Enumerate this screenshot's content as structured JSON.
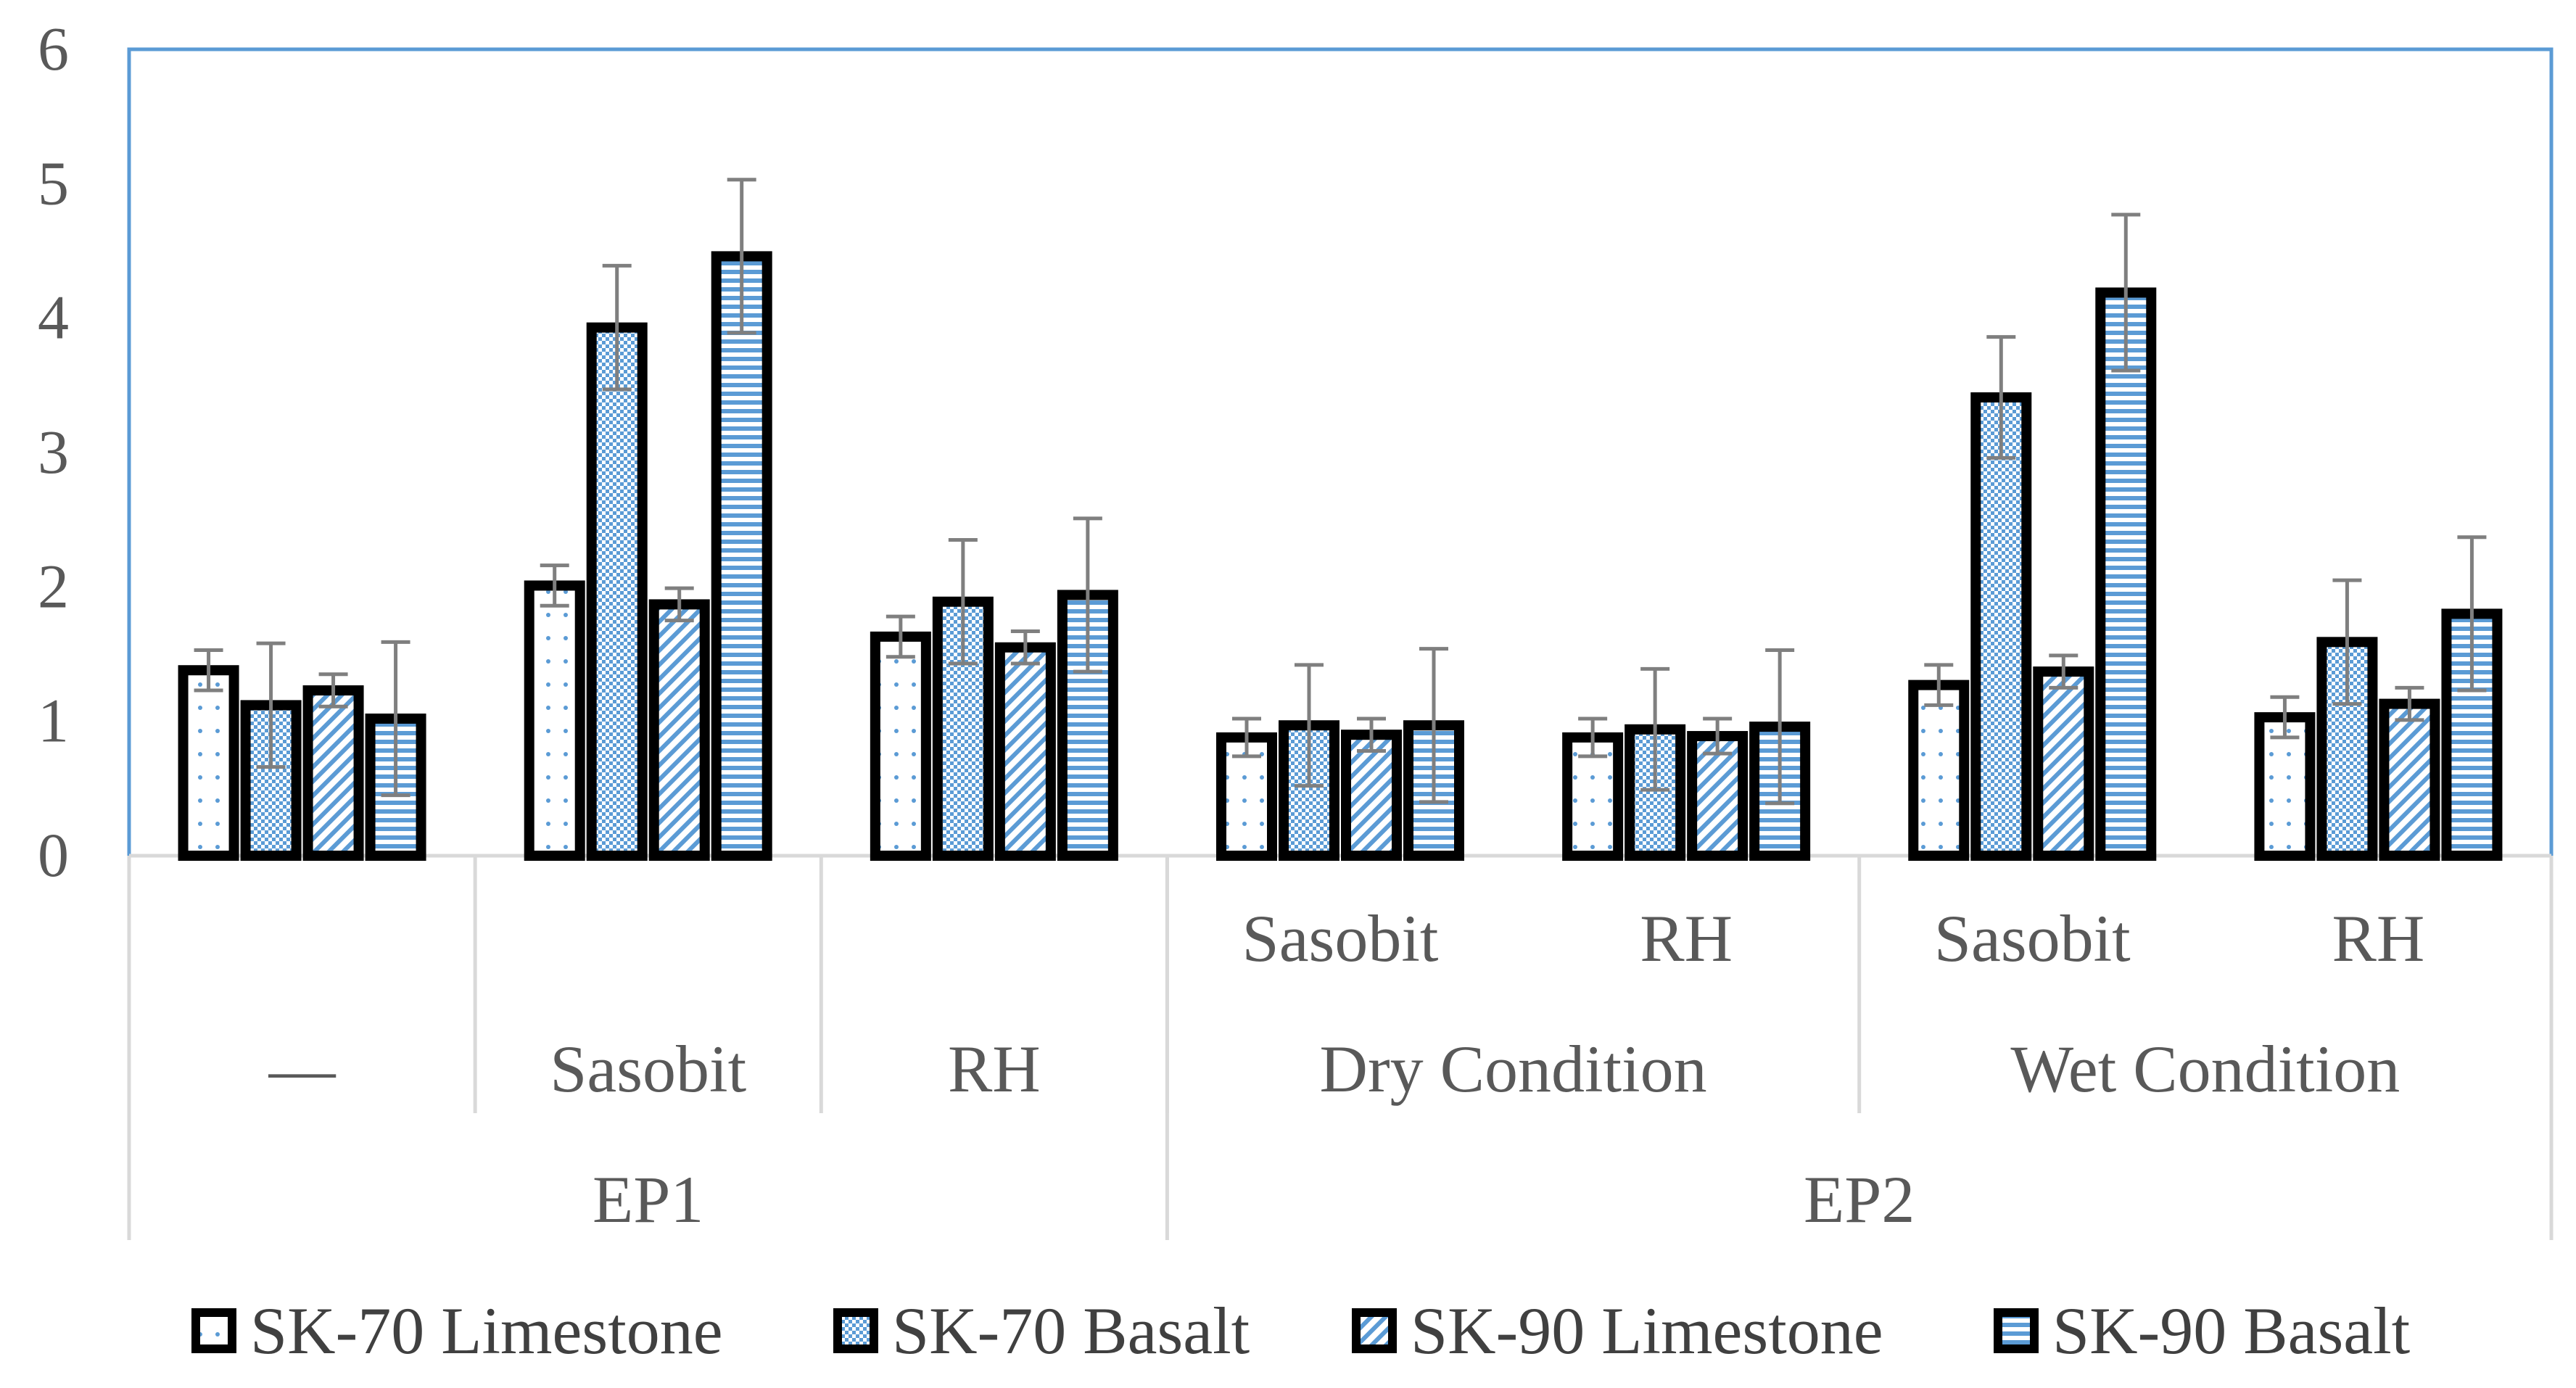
{
  "chart_data": {
    "type": "bar",
    "title": "",
    "xlabel": "",
    "ylabel": "",
    "ylim": [
      0,
      6
    ],
    "yticks": [
      "0",
      "1",
      "2",
      "3",
      "4",
      "5",
      "6"
    ],
    "grid": false,
    "legend_position": "bottom",
    "category_levels": {
      "level1": [
        "—",
        "Sasobit",
        "RH",
        "Sasobit",
        "RH",
        "Sasobit",
        "RH"
      ],
      "level2": [
        {
          "label": "",
          "span": [
            0,
            0
          ]
        },
        {
          "label": "",
          "span": [
            1,
            1
          ]
        },
        {
          "label": "",
          "span": [
            2,
            2
          ]
        },
        {
          "label": "Dry Condition",
          "span": [
            3,
            4
          ]
        },
        {
          "label": "Wet Condition",
          "span": [
            5,
            6
          ]
        }
      ],
      "level3": [
        {
          "label": "EP1",
          "span": [
            0,
            2
          ]
        },
        {
          "label": "EP2",
          "span": [
            3,
            6
          ]
        }
      ]
    },
    "series": [
      {
        "name": "SK-70 Limestone",
        "pattern": "dots",
        "values": [
          1.38,
          2.01,
          1.63,
          0.88,
          0.88,
          1.27,
          1.03
        ],
        "errors": [
          0.15,
          0.15,
          0.15,
          0.14,
          0.14,
          0.15,
          0.15
        ]
      },
      {
        "name": "SK-70 Basalt",
        "pattern": "crosshatch",
        "values": [
          1.12,
          3.93,
          1.89,
          0.97,
          0.94,
          3.41,
          1.59
        ],
        "errors": [
          0.46,
          0.46,
          0.46,
          0.45,
          0.45,
          0.45,
          0.46
        ]
      },
      {
        "name": "SK-90 Limestone",
        "pattern": "diagonal",
        "values": [
          1.23,
          1.87,
          1.55,
          0.9,
          0.89,
          1.37,
          1.13
        ],
        "errors": [
          0.12,
          0.12,
          0.12,
          0.12,
          0.13,
          0.12,
          0.12
        ]
      },
      {
        "name": "SK-90 Basalt",
        "pattern": "horizontal",
        "values": [
          1.02,
          4.46,
          1.94,
          0.97,
          0.96,
          4.19,
          1.8
        ],
        "errors": [
          0.57,
          0.57,
          0.57,
          0.57,
          0.57,
          0.58,
          0.57
        ]
      }
    ]
  },
  "colors": {
    "plot_border": "#5b9bd5",
    "bar_outline": "#000000",
    "pattern": "#5b9bd5",
    "error_bar": "#7f7f7f",
    "axis": "#d9d9d9"
  }
}
